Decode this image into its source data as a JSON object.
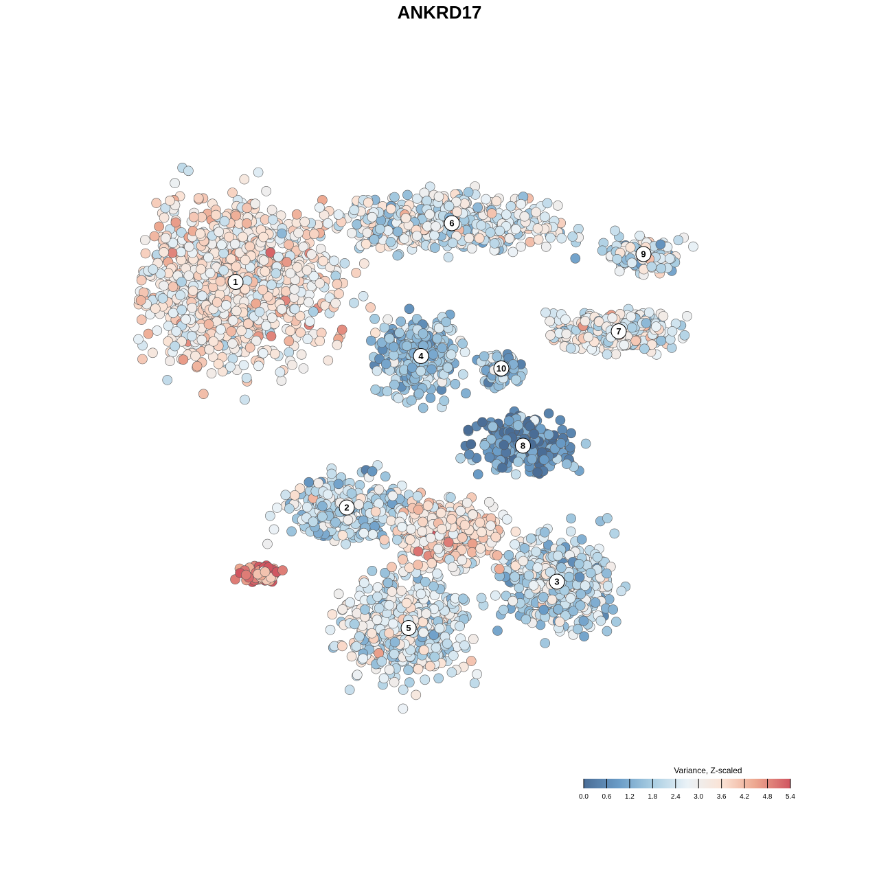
{
  "chart_data": {
    "type": "scatter",
    "title": "ANKRD17",
    "xlabel": "",
    "ylabel": "",
    "grid": false,
    "legend": {
      "title": "Variance, Z-scaled",
      "placement": "bottom-right",
      "ticks": [
        "0.0",
        "0.6",
        "1.2",
        "1.8",
        "2.4",
        "3.0",
        "3.6",
        "4.2",
        "4.8",
        "5.4"
      ],
      "range": [
        0.0,
        5.4
      ],
      "colors": [
        "#4a6d96",
        "#6a9cc7",
        "#a8cde2",
        "#eaf2f7",
        "#fbe3d5",
        "#eda78f",
        "#d05560"
      ]
    },
    "clusters": [
      {
        "label": "1",
        "x": -6.6,
        "y": 5.1,
        "mean": 3.3,
        "spread": [
          2.8,
          2.3
        ]
      },
      {
        "label": "2",
        "x": -3.0,
        "y": -2.2,
        "mean": 2.2,
        "spread": [
          1.8,
          0.9
        ]
      },
      {
        "label": "3",
        "x": 3.8,
        "y": -4.6,
        "mean": 2.2,
        "spread": [
          1.6,
          1.3
        ]
      },
      {
        "label": "4",
        "x": -0.6,
        "y": 2.7,
        "mean": 1.7,
        "spread": [
          1.2,
          1.1
        ]
      },
      {
        "label": "5",
        "x": -1.0,
        "y": -6.1,
        "mean": 2.6,
        "spread": [
          1.9,
          1.5
        ]
      },
      {
        "label": "6",
        "x": 0.4,
        "y": 7.0,
        "mean": 2.7,
        "spread": [
          3.3,
          0.8
        ]
      },
      {
        "label": "7",
        "x": 5.8,
        "y": 3.5,
        "mean": 2.7,
        "spread": [
          1.9,
          0.6
        ]
      },
      {
        "label": "8",
        "x": 2.7,
        "y": -0.2,
        "mean": 0.7,
        "spread": [
          1.4,
          0.8
        ]
      },
      {
        "label": "9",
        "x": 6.6,
        "y": 6.0,
        "mean": 2.4,
        "spread": [
          1.1,
          0.5
        ]
      },
      {
        "label": "10",
        "x": 2.0,
        "y": 2.3,
        "mean": 1.6,
        "spread": [
          0.6,
          0.5
        ]
      },
      {
        "label": "",
        "x": 0.3,
        "y": -3.0,
        "mean": 3.5,
        "spread": [
          1.5,
          1.0
        ]
      },
      {
        "label": "",
        "x": -5.8,
        "y": -4.3,
        "mean": 4.9,
        "spread": [
          0.6,
          0.3
        ]
      }
    ]
  }
}
